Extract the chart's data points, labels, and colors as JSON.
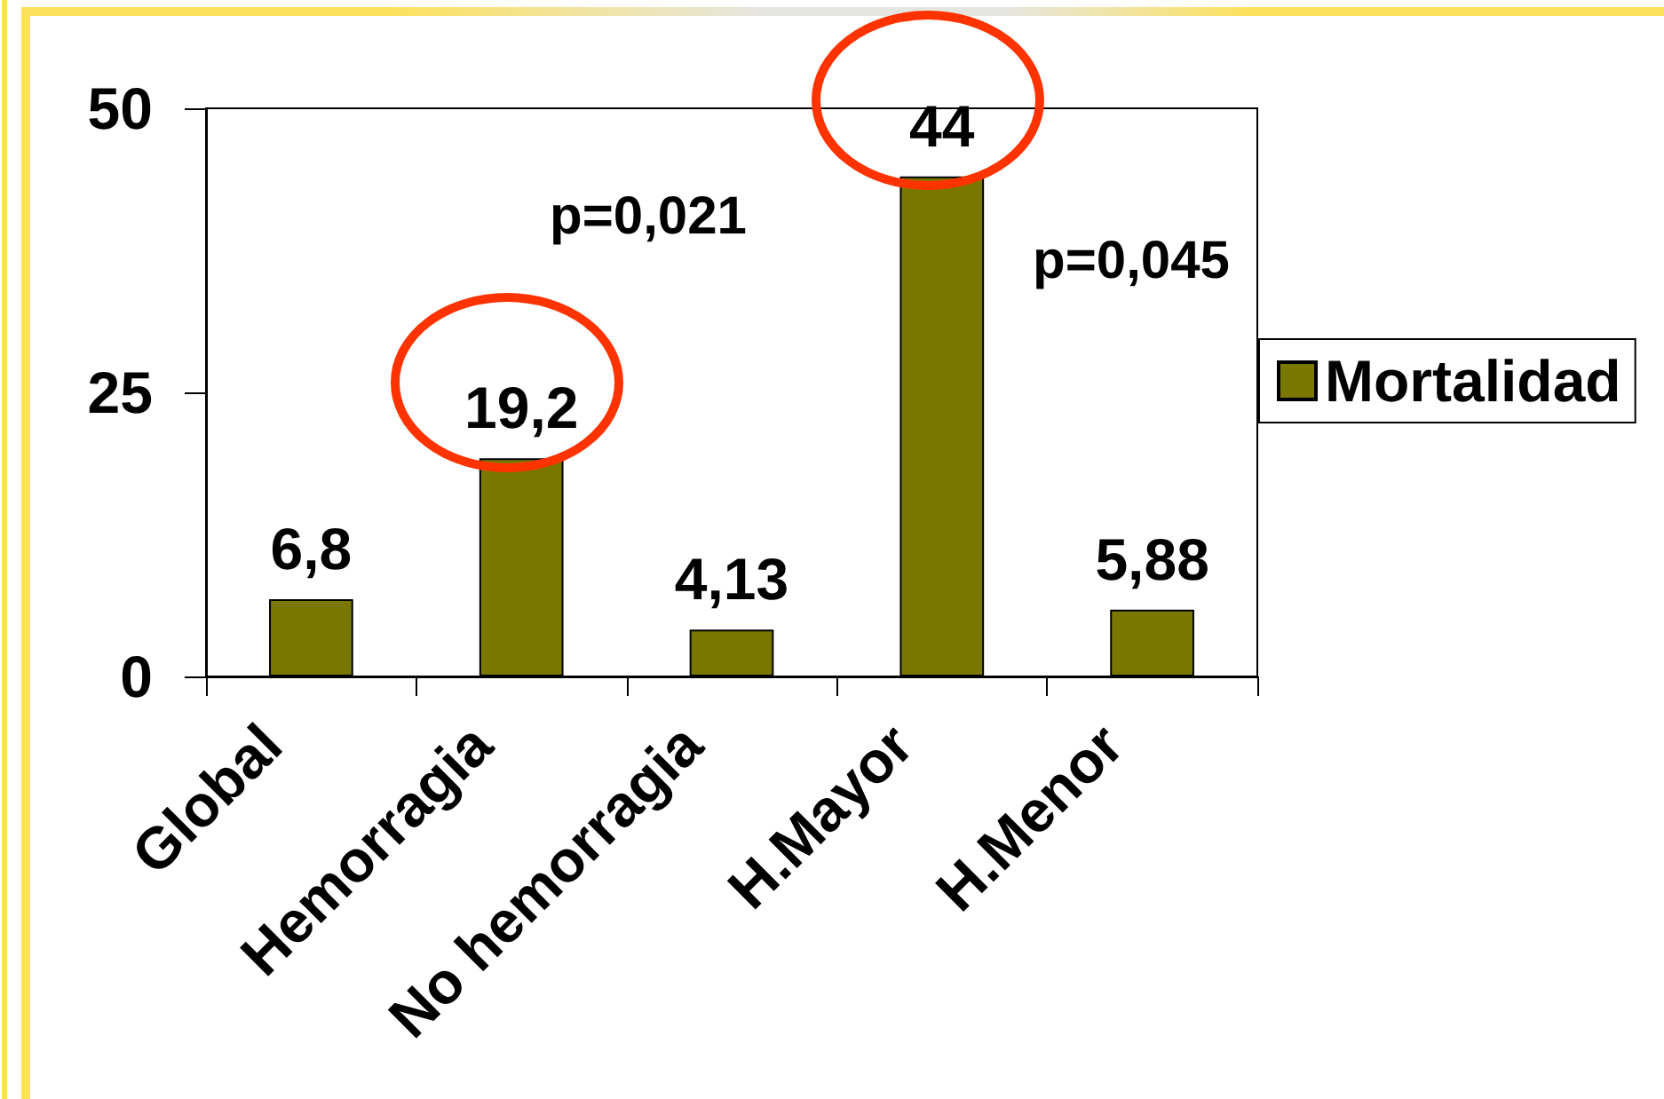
{
  "chart_data": {
    "type": "bar",
    "categories": [
      "Global",
      "Hemorragia",
      "No hemorragia",
      "H.Mayor",
      "H.Menor"
    ],
    "series": [
      {
        "name": "Mortalidad",
        "color": "#7a7700",
        "values": [
          6.8,
          19.2,
          4.13,
          44,
          5.88
        ],
        "value_labels": [
          "6,8",
          "19,2",
          "4,13",
          "44",
          "5,88"
        ]
      }
    ],
    "ylim": [
      0,
      50
    ],
    "yticks": [
      0,
      25,
      50
    ],
    "grid": false,
    "legend": "right",
    "annotations": [
      "p=0,021",
      "p=0,045"
    ]
  }
}
